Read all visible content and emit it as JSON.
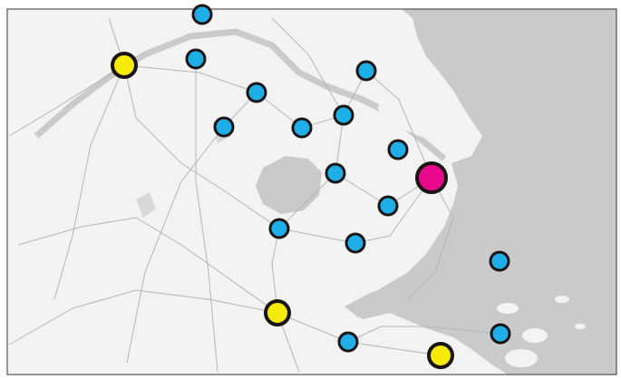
{
  "map": {
    "colors": {
      "land": "#f3f3f3",
      "water": "#c9cacc",
      "road": "#b5b5b5",
      "frame": "#333333"
    },
    "legend_colors": {
      "blue": "#1eaee8",
      "yellow": "#f6ea0a",
      "magenta": "#e8088c",
      "outline": "#1a1414"
    },
    "markers": [
      {
        "color": "blue"
      },
      {
        "color": "yellow"
      },
      {
        "color": "blue"
      },
      {
        "color": "blue"
      },
      {
        "color": "blue"
      },
      {
        "color": "blue"
      },
      {
        "color": "blue"
      },
      {
        "color": "blue"
      },
      {
        "color": "blue"
      },
      {
        "color": "blue"
      },
      {
        "color": "magenta"
      },
      {
        "color": "blue"
      },
      {
        "color": "blue"
      },
      {
        "color": "blue"
      },
      {
        "color": "blue"
      },
      {
        "color": "yellow"
      },
      {
        "color": "blue"
      },
      {
        "color": "blue"
      },
      {
        "color": "yellow"
      }
    ]
  }
}
